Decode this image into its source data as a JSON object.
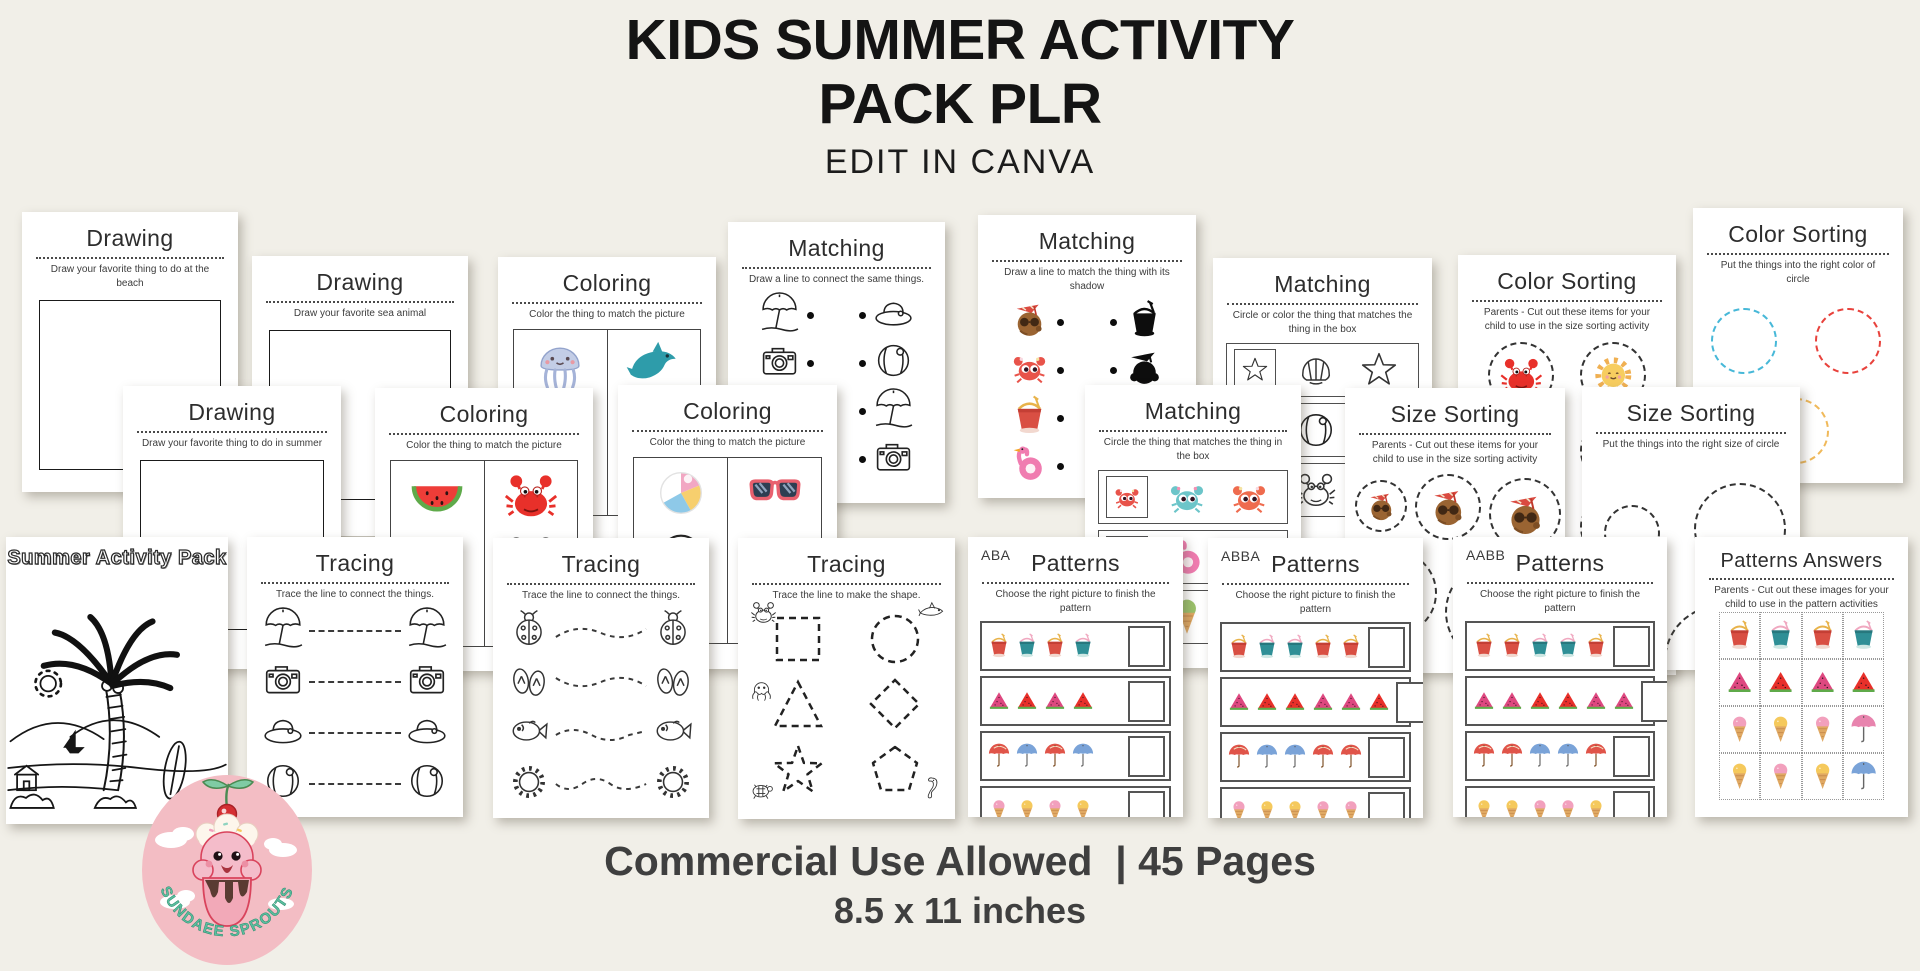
{
  "header": {
    "title_line1": "KIDS SUMMER ACTIVITY",
    "title_line2": "PACK PLR",
    "subtitle": "EDIT IN CANVA"
  },
  "footer": {
    "line1": "Commercial Use Allowed  | 45 Pages",
    "line2": "8.5 x 11 inches"
  },
  "logo": {
    "brand": "SUNDAEE SPROUTS"
  },
  "colors": {
    "background": "#f1efe8",
    "page": "#ffffff",
    "heading_text": "#141414",
    "footer_text": "#3f3f3f",
    "accent_red": "#e8302a",
    "accent_teal": "#2f8f96",
    "sun_yellow": "#f7cd5f",
    "flamingo_pink": "#f07cb0",
    "logo_pink": "#f3bdc4",
    "logo_text_teal": "#5bbf9f",
    "sort_circle_blue": "#47b8d8",
    "sort_circle_red": "#e8423c",
    "sort_circle_yellow": "#f0b95a"
  },
  "icon_glossary": [
    "umbrella-o",
    "camera-o",
    "hat-o",
    "ball-o",
    "shell-o",
    "star-o",
    "jelly-c",
    "jelly-o",
    "dolphin-c",
    "dolphin-o",
    "whale-c",
    "melon-c",
    "melon-o",
    "crab-c",
    "crab-o",
    "ball-c",
    "sg-c",
    "sg-o",
    "coconut",
    "crab-cute-red",
    "crab-cute-teal",
    "crab-cute-orange",
    "bucket-red",
    "bucket-teal",
    "flamingo",
    "shadow-bucket",
    "shadow-coconut",
    "sun-c",
    "ladybug-o",
    "flipflop-o",
    "fish-o",
    "sun-o",
    "shark-o",
    "octopus-o",
    "turtle-o",
    "seahorse-o",
    "melon-pink",
    "melon-red",
    "umb-red",
    "umb-blue",
    "umb-pink",
    "ic-pink",
    "ic-yellow",
    "ic-green",
    "duck-yellow",
    "shell-purple",
    "ball-red"
  ],
  "pages": {
    "drawing_beach": {
      "title": "Drawing",
      "subtitle": "Draw your favorite thing to do at the beach"
    },
    "drawing_sea_animal": {
      "title": "Drawing",
      "subtitle": "Draw your favorite sea animal"
    },
    "drawing_summer": {
      "title": "Drawing",
      "subtitle": "Draw your favorite thing to do in summer"
    },
    "coloring_sea": {
      "title": "Coloring",
      "subtitle": "Color the thing to match the picture",
      "cells": [
        [
          "jelly-c",
          "jelly-o"
        ],
        [
          "dolphin-c",
          "dolphin-o",
          "whale-c"
        ]
      ]
    },
    "coloring_fruit": {
      "title": "Coloring",
      "subtitle": "Color the thing to match the picture",
      "cells": [
        [
          "melon-c",
          "melon-o",
          "ball-red"
        ],
        [
          "crab-c",
          "crab-o"
        ]
      ]
    },
    "coloring_beach": {
      "title": "Coloring",
      "subtitle": "Color the thing to match the picture",
      "cells": [
        [
          "ball-c",
          "ball-o"
        ],
        [
          "sg-c",
          "sg-o",
          "shell-purple"
        ]
      ]
    },
    "matching_same": {
      "title": "Matching",
      "subtitle": "Draw a line to connect the same things.",
      "left_rows": [
        [
          "umbrella-o"
        ],
        [
          "camera-o"
        ],
        [
          "hat-o"
        ],
        [
          "ball-o"
        ]
      ],
      "right_rows": [
        [
          "hat-o"
        ],
        [
          "ball-o"
        ],
        [
          "umbrella-o"
        ],
        [
          "camera-o"
        ]
      ]
    },
    "matching_shadow": {
      "title": "Matching",
      "subtitle": "Draw a line to match the thing with its shadow",
      "left_rows": [
        [
          "coconut"
        ],
        [
          "crab-cute-red"
        ],
        [
          "bucket-red"
        ],
        [
          "flamingo"
        ]
      ],
      "right_rows": [
        [
          "shadow-bucket"
        ],
        [
          "shadow-coconut"
        ]
      ]
    },
    "matching_circle_or_color": {
      "title": "Matching",
      "subtitle": "Circle or color the thing that matches the thing in the box",
      "rows": [
        {
          "box": [
            "star-o"
          ],
          "options": [
            "shell-o",
            "star-o"
          ]
        },
        {
          "box": [
            "ball-o"
          ],
          "options": [
            "ball-o",
            "shell-o"
          ]
        },
        {
          "box": [
            "crab-o"
          ],
          "options": [
            "crab-o",
            "sg-o"
          ]
        }
      ]
    },
    "matching_in_box": {
      "title": "Matching",
      "subtitle": "Circle the thing that matches the thing in the box",
      "rows": [
        {
          "box": [
            "crab-cute-red"
          ],
          "options": [
            "crab-cute-teal",
            "crab-cute-orange"
          ]
        },
        {
          "box": [
            "flamingo"
          ],
          "options": [
            "flamingo",
            "duck-yellow"
          ]
        },
        {
          "box": [
            "ic-green"
          ],
          "options": [
            "ic-green",
            "ic-pink"
          ]
        }
      ]
    },
    "color_sorting_cutouts": {
      "title": "Color Sorting",
      "subtitle": "Parents - Cut out these items for your child to use in the size sorting activity",
      "cells": [
        [
          "crab-c"
        ],
        [
          "sun-c"
        ],
        [
          "sun-c"
        ],
        [
          "crab-c"
        ],
        [
          "sun-c"
        ],
        [
          "dolphin-c"
        ]
      ]
    },
    "color_sorting_circles": {
      "title": "Color Sorting",
      "subtitle": "Put the things into the right color of circle",
      "circle_colors": [
        "#47b8d8",
        "#e8423c",
        "#f0b95a"
      ]
    },
    "size_sorting_cutouts": {
      "title": "Size Sorting",
      "subtitle": "Parents - Cut out these items for your child to use in the size sorting activity",
      "cells": [
        [
          "coconut"
        ],
        [
          "coconut"
        ],
        [
          "coconut"
        ],
        [
          "coconut"
        ],
        [
          "coconut"
        ]
      ]
    },
    "size_sorting_circles": {
      "title": "Size Sorting",
      "subtitle": "Put the things into the right size of circle"
    },
    "cover": {
      "title": "Summer Activity Pack"
    },
    "tracing_connect_a": {
      "title": "Tracing",
      "subtitle": "Trace the line to connect the things.",
      "rows": [
        [
          "umbrella-o"
        ],
        [
          "camera-o"
        ],
        [
          "hat-o"
        ],
        [
          "ball-o"
        ]
      ]
    },
    "tracing_connect_b": {
      "title": "Tracing",
      "subtitle": "Trace the line to connect the things.",
      "rows": [
        [
          "ladybug-o"
        ],
        [
          "flipflop-o"
        ],
        [
          "fish-o"
        ],
        [
          "sun-o"
        ]
      ]
    },
    "tracing_shapes": {
      "title": "Tracing",
      "subtitle": "Trace the line to make the shape."
    },
    "patterns_aba": {
      "corner_label": "ABA",
      "title": "Patterns",
      "subtitle": "Choose the right picture to finish the pattern",
      "rows": [
        [
          "bucket-red",
          "bucket-teal",
          "bucket-red",
          "bucket-teal"
        ],
        [
          "melon-pink",
          "melon-red",
          "melon-pink",
          "melon-red"
        ],
        [
          "umb-red",
          "umb-blue",
          "umb-red",
          "umb-blue"
        ],
        [
          "ic-pink",
          "ic-yellow",
          "ic-pink",
          "ic-yellow"
        ]
      ]
    },
    "patterns_abba": {
      "corner_label": "ABBA",
      "title": "Patterns",
      "subtitle": "Choose the right picture to finish the pattern",
      "rows": [
        [
          "bucket-red",
          "bucket-teal",
          "bucket-teal",
          "bucket-red",
          "bucket-red"
        ],
        [
          "melon-pink",
          "melon-red",
          "melon-red",
          "melon-pink",
          "melon-pink",
          "melon-red"
        ],
        [
          "umb-red",
          "umb-blue",
          "umb-blue",
          "umb-red",
          "umb-red"
        ],
        [
          "ic-pink",
          "ic-yellow",
          "ic-yellow",
          "ic-pink",
          "ic-pink"
        ]
      ]
    },
    "patterns_aabb": {
      "corner_label": "AABB",
      "title": "Patterns",
      "subtitle": "Choose the right picture to finish the pattern",
      "rows": [
        [
          "bucket-red",
          "bucket-red",
          "bucket-teal",
          "bucket-teal",
          "bucket-red"
        ],
        [
          "melon-pink",
          "melon-pink",
          "melon-red",
          "melon-red",
          "melon-pink",
          "melon-pink"
        ],
        [
          "umb-red",
          "umb-red",
          "umb-blue",
          "umb-blue",
          "umb-red"
        ],
        [
          "ic-yellow",
          "ic-yellow",
          "ic-pink",
          "ic-pink",
          "ic-yellow"
        ]
      ]
    },
    "patterns_answers": {
      "title": "Patterns Answers",
      "subtitle": "Parents - Cut out these images for your child to use in the pattern activities",
      "rows": [
        [
          "bucket-red",
          "bucket-teal",
          "bucket-red",
          "bucket-teal"
        ],
        [
          "melon-pink",
          "melon-red",
          "melon-pink",
          "melon-red"
        ],
        [
          "ic-pink",
          "ic-yellow",
          "ic-pink",
          "umb-pink"
        ],
        [
          "ic-yellow",
          "ic-pink",
          "ic-yellow",
          "umb-blue"
        ]
      ]
    }
  }
}
